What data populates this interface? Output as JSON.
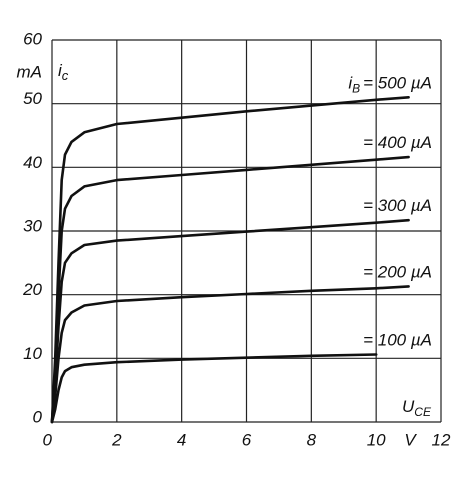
{
  "chart_data": {
    "type": "line",
    "x_label": "U",
    "x_label_sub": "CE",
    "x_unit": "V",
    "y_label": "i",
    "y_label_sub": "c",
    "y_unit": "mA",
    "series_prefix": "i",
    "series_prefix_sub": "B",
    "x": [
      0,
      0.1,
      0.2,
      0.3,
      0.4,
      0.6,
      1,
      2,
      4,
      6,
      8,
      10,
      11
    ],
    "series": [
      {
        "name": "= 500 µA",
        "color": "#111111",
        "values": [
          0,
          10,
          25,
          38,
          42,
          44,
          45.5,
          46.8,
          47.8,
          48.8,
          49.7,
          50.6,
          51
        ]
      },
      {
        "name": "= 400 µA",
        "color": "#111111",
        "values": [
          0,
          8,
          20,
          30,
          33.5,
          35.5,
          37,
          38,
          38.8,
          39.6,
          40.4,
          41.2,
          41.6
        ]
      },
      {
        "name": "= 300 µA",
        "color": "#111111",
        "values": [
          0,
          6,
          15,
          22,
          25,
          26.5,
          27.8,
          28.5,
          29.2,
          29.9,
          30.6,
          31.3,
          31.7
        ]
      },
      {
        "name": "= 200 µA",
        "color": "#111111",
        "values": [
          0,
          4,
          10,
          14,
          16,
          17.2,
          18.3,
          19,
          19.6,
          20.1,
          20.6,
          21,
          21.3
        ]
      },
      {
        "name": "= 100 µA",
        "color": "#111111",
        "values": [
          0,
          2,
          5,
          7,
          8,
          8.6,
          9,
          9.4,
          9.8,
          10.1,
          10.4,
          10.6,
          null
        ]
      }
    ],
    "xlim": [
      0,
      12
    ],
    "ylim": [
      0,
      60
    ],
    "xticks": [
      0,
      2,
      4,
      6,
      8,
      10,
      12
    ],
    "yticks": [
      0,
      10,
      20,
      30,
      40,
      50,
      60
    ],
    "grid": true
  }
}
